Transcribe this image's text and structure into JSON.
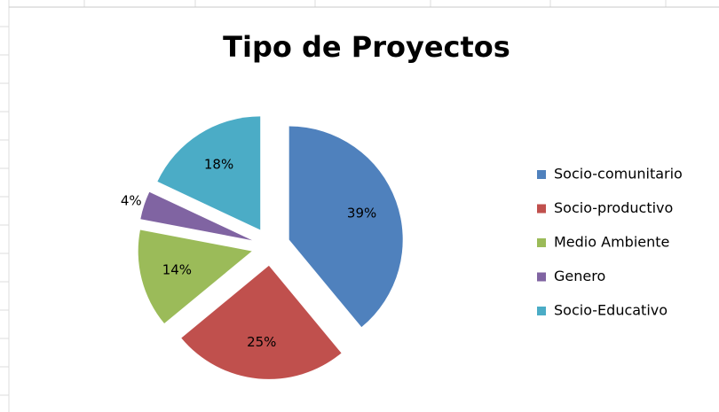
{
  "chart_data": {
    "type": "pie",
    "title": "Tipo de Proyectos",
    "categories": [
      "Socio-comunitario",
      "Socio-productivo",
      "Medio Ambiente",
      "Genero",
      "Socio-Educativo"
    ],
    "values": [
      39,
      25,
      14,
      4,
      18
    ],
    "value_labels": [
      "39%",
      "25%",
      "14%",
      "4%",
      "18%"
    ],
    "colors": [
      "#4f81bd",
      "#c0504d",
      "#9bbb59",
      "#8064a2",
      "#4bacc6"
    ],
    "legend": "right"
  }
}
